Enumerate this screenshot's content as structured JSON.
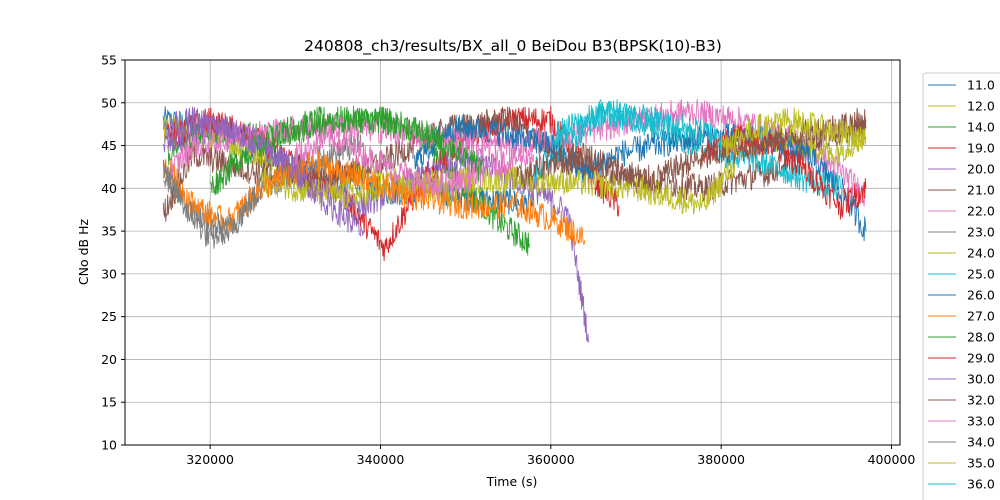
{
  "chart_data": {
    "type": "line",
    "title": "240808_ch3/results/BX_all_0 BeiDou B3(BPSK(10)-B3)",
    "xlabel": "Time (s)",
    "ylabel": "CNo dB Hz",
    "xlim": [
      310000,
      401000
    ],
    "ylim": [
      10,
      55
    ],
    "xticks": [
      320000,
      340000,
      360000,
      380000,
      400000
    ],
    "xtick_labels": [
      "320000",
      "340000",
      "360000",
      "380000",
      "400000"
    ],
    "yticks": [
      10,
      15,
      20,
      25,
      30,
      35,
      40,
      45,
      50,
      55
    ],
    "ytick_labels": [
      "10",
      "15",
      "20",
      "25",
      "30",
      "35",
      "40",
      "45",
      "50",
      "55"
    ],
    "grid": true,
    "legend_position": "right-outside",
    "series": [
      {
        "name": "11.0",
        "color": "#1f77b4",
        "x": [
          314500,
          320000,
          326000,
          331000,
          336000,
          341000,
          346000,
          350000,
          355000,
          358000
        ],
        "y": [
          48,
          47,
          44,
          42,
          41,
          39.5,
          40,
          39,
          38.5,
          38
        ]
      },
      {
        "name": "12.0",
        "color": "#bcbd22",
        "x": [
          314500,
          320000,
          326000,
          332000,
          338000,
          342000,
          346000,
          349000
        ],
        "y": [
          47,
          46,
          44,
          40,
          42,
          41,
          40,
          39
        ]
      },
      {
        "name": "14.0",
        "color": "#2ca02c",
        "x": [
          315000,
          320000,
          326000,
          333000,
          340000,
          345000,
          350000,
          354000,
          357500
        ],
        "y": [
          44,
          47,
          46,
          48,
          48,
          46,
          40,
          36,
          33.5
        ]
      },
      {
        "name": "19.0",
        "color": "#d62728",
        "x": [
          315000,
          320000,
          325000,
          330000,
          335000,
          340500,
          345000,
          350000,
          355000,
          360000,
          365000,
          368000
        ],
        "y": [
          46,
          48,
          46,
          43,
          40,
          33,
          41,
          46,
          48,
          48,
          41,
          38
        ]
      },
      {
        "name": "20.0",
        "color": "#9467bd",
        "x": [
          314500,
          320000,
          325000,
          330000,
          334000,
          338000,
          342000,
          346000,
          350000,
          354000,
          358000,
          362000,
          364500
        ],
        "y": [
          45,
          47,
          46,
          42,
          40,
          38,
          40,
          42,
          44,
          42,
          40,
          37,
          22
        ]
      },
      {
        "name": "21.0",
        "color": "#8c564b",
        "x": [
          314500,
          318000,
          325000,
          332000,
          340000,
          348000,
          355000,
          362000,
          370000,
          378000,
          386000,
          392000,
          397000
        ],
        "y": [
          37,
          44,
          42,
          41,
          43,
          47,
          48,
          43,
          41,
          40,
          42,
          46,
          47
        ]
      },
      {
        "name": "22.0",
        "color": "#e377c2",
        "x": [
          314500,
          318000,
          323000,
          330000,
          338000,
          346000,
          354000,
          362000,
          370000,
          376000,
          382000,
          388000,
          394000,
          397000
        ],
        "y": [
          41,
          45,
          46,
          47,
          47,
          46,
          45,
          46,
          48,
          49,
          48,
          46,
          42,
          39
        ]
      },
      {
        "name": "23.0",
        "color": "#7f7f7f",
        "x": [
          314500,
          318000,
          322000,
          326000,
          330000,
          334000,
          338000
        ],
        "y": [
          42,
          37,
          35,
          40,
          42,
          44,
          45
        ]
      },
      {
        "name": "24.0",
        "color": "#bcbd22",
        "x": [
          326000,
          330000,
          336000,
          342000,
          350000,
          360000,
          370000,
          378000,
          383000,
          388000,
          393000,
          397000
        ],
        "y": [
          41,
          40,
          39,
          40,
          41,
          41,
          40,
          38,
          45,
          46,
          44,
          46
        ]
      },
      {
        "name": "25.0",
        "color": "#17becf",
        "x": [
          358000,
          362000,
          366000,
          370000,
          375000,
          380000,
          385000,
          390000,
          394000
        ],
        "y": [
          42,
          45,
          49,
          48,
          46,
          44,
          43,
          41,
          40
        ]
      },
      {
        "name": "26.0",
        "color": "#1f77b4",
        "x": [
          344000,
          348000,
          352000,
          356000,
          360000,
          364000,
          368000,
          372000,
          378000,
          384000,
          390000,
          394000,
          397000
        ],
        "y": [
          43,
          47,
          47,
          46,
          45,
          42,
          44,
          45,
          46,
          46,
          44,
          40,
          35
        ]
      },
      {
        "name": "27.0",
        "color": "#ff7f0e",
        "x": [
          314500,
          318000,
          322000,
          326000,
          332000,
          338000,
          344000,
          350000,
          356000,
          361000,
          364000
        ],
        "y": [
          43,
          38,
          36,
          40,
          43,
          41,
          39,
          38,
          38,
          36,
          34
        ]
      },
      {
        "name": "28.0",
        "color": "#2ca02c",
        "x": [
          320000,
          324000,
          328000,
          332000,
          336000,
          340000,
          344000,
          348000,
          352000
        ],
        "y": [
          40,
          44,
          46,
          47,
          48,
          48,
          47,
          45,
          42
        ]
      },
      {
        "name": "29.0",
        "color": "#d62728",
        "x": [
          378000,
          382000,
          386000,
          390000,
          394000,
          397000
        ],
        "y": [
          44,
          46,
          45,
          42,
          38,
          40
        ]
      },
      {
        "name": "30.0",
        "color": "#9467bd",
        "x": [
          314500,
          318000,
          322000,
          326000,
          330000,
          334000,
          338000
        ],
        "y": [
          47,
          48,
          47,
          45,
          42,
          38,
          35
        ]
      },
      {
        "name": "32.0",
        "color": "#8c564b",
        "x": [
          356000,
          360000,
          364000,
          368000,
          372000,
          376000,
          380000,
          384000,
          388000,
          392000,
          397000
        ],
        "y": [
          41,
          43,
          44,
          42,
          41,
          43,
          44,
          45,
          46,
          47,
          48
        ]
      },
      {
        "name": "33.0",
        "color": "#e377c2",
        "x": [
          330000,
          334000,
          338000,
          342000,
          346000,
          350000,
          354000,
          358000
        ],
        "y": [
          44,
          46,
          44,
          42,
          40,
          41,
          43,
          44
        ]
      },
      {
        "name": "34.0",
        "color": "#7f7f7f",
        "x": [
          314500,
          317000,
          320000,
          323000,
          326000
        ],
        "y": [
          42,
          38,
          34,
          36,
          40
        ]
      },
      {
        "name": "35.0",
        "color": "#bcbd22",
        "x": [
          380000,
          384000,
          388000,
          392000,
          396000,
          397000
        ],
        "y": [
          45,
          47,
          48,
          47,
          46,
          45
        ]
      },
      {
        "name": "36.0",
        "color": "#17becf",
        "x": [
          360000,
          364000,
          368000,
          372000,
          376000,
          380000
        ],
        "y": [
          46,
          48,
          49,
          48,
          47,
          46
        ]
      }
    ]
  }
}
